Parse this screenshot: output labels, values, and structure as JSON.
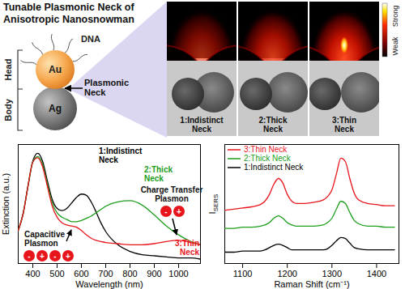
{
  "header": {
    "title": "Tunable Plasmonic Neck of Anisotropic Nanosnowman"
  },
  "schematic": {
    "dna": "DNA",
    "head_material": "Au",
    "body_material": "Ag",
    "head": "Head",
    "body": "Body",
    "neck": "Plasmonic Neck"
  },
  "near_field_maps": {
    "colorbar_high": "Strong",
    "colorbar_low": "Weak"
  },
  "panels": [
    "1:Indistinct Neck",
    "2:Thick Neck",
    "3:Thin Neck"
  ],
  "chart_data": [
    {
      "type": "line",
      "x_label": "Wavelength (nm)",
      "y_label": "Extinction (a.u.)",
      "x": [
        340,
        360,
        380,
        400,
        420,
        440,
        460,
        480,
        500,
        520,
        540,
        560,
        580,
        600,
        620,
        640,
        660,
        680,
        700,
        750,
        800,
        850,
        900,
        950,
        1000,
        1050,
        1090
      ],
      "series": [
        {
          "name": "1:Indistinct Neck",
          "color": "#000000",
          "values": [
            0.3,
            0.45,
            0.7,
            0.93,
            1,
            0.93,
            0.75,
            0.58,
            0.5,
            0.48,
            0.5,
            0.55,
            0.6,
            0.63,
            0.62,
            0.56,
            0.47,
            0.37,
            0.29,
            0.17,
            0.11,
            0.08,
            0.07,
            0.06,
            0.05,
            0.05,
            0.04
          ]
        },
        {
          "name": "2:Thick Neck",
          "color": "#1c9e1c",
          "values": [
            0.3,
            0.45,
            0.7,
            0.92,
            0.97,
            0.9,
            0.72,
            0.55,
            0.46,
            0.42,
            0.4,
            0.38,
            0.38,
            0.39,
            0.41,
            0.43,
            0.46,
            0.49,
            0.52,
            0.56,
            0.57,
            0.53,
            0.44,
            0.34,
            0.26,
            0.2,
            0.17
          ]
        },
        {
          "name": "3:Thin Neck",
          "color": "#e8141c",
          "values": [
            0.3,
            0.45,
            0.7,
            0.92,
            0.96,
            0.88,
            0.7,
            0.52,
            0.42,
            0.37,
            0.35,
            0.34,
            0.33,
            0.3,
            0.26,
            0.23,
            0.21,
            0.2,
            0.19,
            0.18,
            0.17,
            0.17,
            0.18,
            0.2,
            0.21,
            0.19,
            0.17
          ]
        }
      ],
      "xlim": [
        340,
        1090
      ],
      "xticks": [
        400,
        500,
        600,
        700,
        800,
        900,
        1000
      ],
      "ylim": [
        0,
        1.08
      ],
      "yticks": [],
      "tick_labels": "x",
      "annotations": [
        {
          "text": "Capacitive Plasmon",
          "charges": [
            "-",
            "+",
            "-",
            "+"
          ]
        },
        {
          "text": "Charge Transfer Plasmon",
          "charges": [
            "-",
            "+"
          ]
        }
      ]
    },
    {
      "type": "line",
      "x_label": "Raman Shift (cm⁻¹)",
      "y_label": "ISERS",
      "x": [
        1060,
        1080,
        1100,
        1120,
        1140,
        1150,
        1160,
        1170,
        1180,
        1190,
        1200,
        1210,
        1220,
        1240,
        1260,
        1280,
        1290,
        1300,
        1310,
        1320,
        1330,
        1340,
        1350,
        1360,
        1380,
        1400,
        1420,
        1440
      ],
      "series": [
        {
          "name": "3:Thin Neck",
          "color": "#e8141c",
          "values": [
            0.52,
            0.53,
            0.54,
            0.55,
            0.57,
            0.6,
            0.66,
            0.75,
            0.8,
            0.76,
            0.66,
            0.6,
            0.58,
            0.58,
            0.59,
            0.61,
            0.64,
            0.7,
            0.84,
            0.98,
            0.95,
            0.8,
            0.67,
            0.61,
            0.58,
            0.57,
            0.56,
            0.56
          ]
        },
        {
          "name": "2:Thick Neck",
          "color": "#1c9e1c",
          "values": [
            0.36,
            0.36,
            0.37,
            0.37,
            0.38,
            0.39,
            0.41,
            0.45,
            0.47,
            0.45,
            0.41,
            0.39,
            0.38,
            0.38,
            0.38,
            0.39,
            0.41,
            0.45,
            0.53,
            0.6,
            0.58,
            0.5,
            0.43,
            0.4,
            0.38,
            0.38,
            0.37,
            0.37
          ]
        },
        {
          "name": "1:Indistinct Neck",
          "color": "#000000",
          "values": [
            0.15,
            0.15,
            0.16,
            0.16,
            0.16,
            0.17,
            0.19,
            0.21,
            0.22,
            0.21,
            0.19,
            0.17,
            0.17,
            0.17,
            0.17,
            0.17,
            0.18,
            0.21,
            0.25,
            0.28,
            0.27,
            0.23,
            0.19,
            0.18,
            0.17,
            0.17,
            0.17,
            0.17
          ]
        }
      ],
      "xlim": [
        1060,
        1450
      ],
      "xticks": [
        1100,
        1200,
        1300,
        1400
      ],
      "ylim": [
        0.05,
        1.1
      ],
      "yticks": [],
      "tick_labels": "x",
      "legend": "top-left"
    }
  ]
}
